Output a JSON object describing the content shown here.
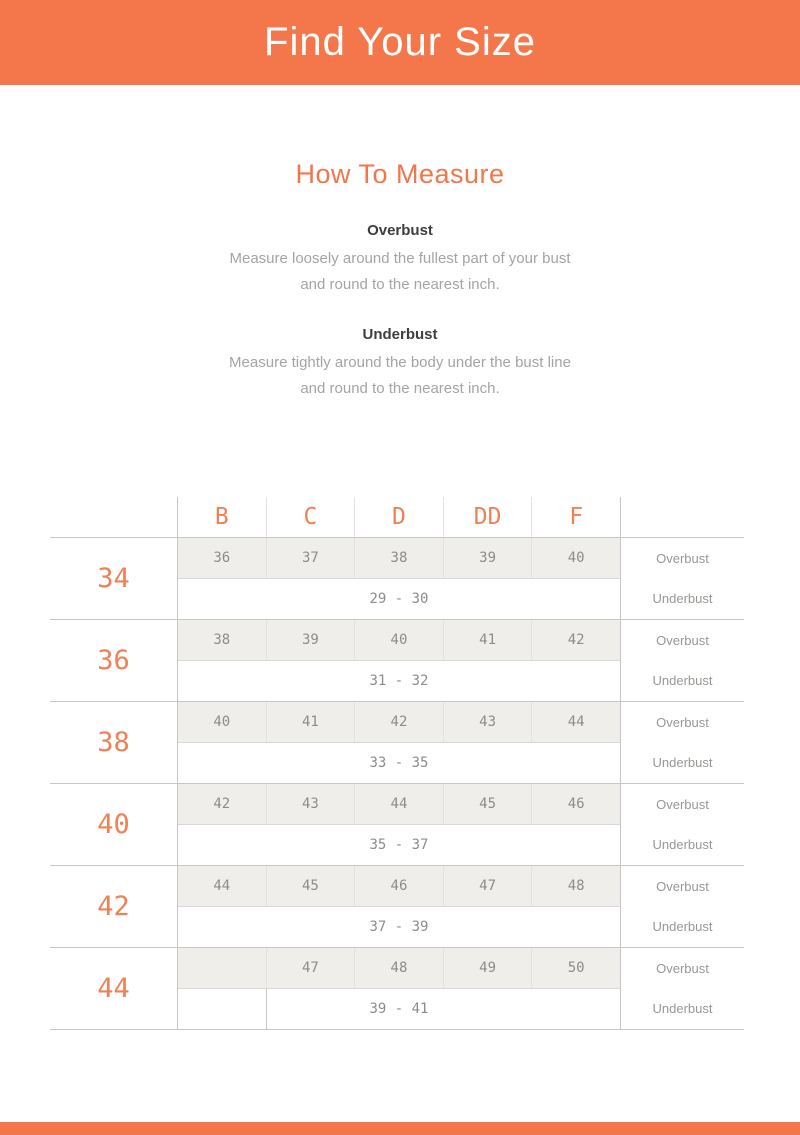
{
  "header": {
    "title": "Find Your Size"
  },
  "how_to_measure": {
    "title": "How To Measure",
    "sections": [
      {
        "heading": "Overbust",
        "line1": "Measure loosely around the fullest part of your bust",
        "line2": "and round to the nearest inch."
      },
      {
        "heading": "Underbust",
        "line1": "Measure tightly around the body under the bust line",
        "line2": "and round to the nearest inch."
      }
    ]
  },
  "size_table": {
    "cup_headers": [
      "B",
      "C",
      "D",
      "DD",
      "F"
    ],
    "row_labels": {
      "overbust": "Overbust",
      "underbust": "Underbust"
    },
    "rows": [
      {
        "band": "34",
        "overbust": [
          "36",
          "37",
          "38",
          "39",
          "40"
        ],
        "underbust": "29 - 30"
      },
      {
        "band": "36",
        "overbust": [
          "38",
          "39",
          "40",
          "41",
          "42"
        ],
        "underbust": "31 - 32"
      },
      {
        "band": "38",
        "overbust": [
          "40",
          "41",
          "42",
          "43",
          "44"
        ],
        "underbust": "33 - 35"
      },
      {
        "band": "40",
        "overbust": [
          "42",
          "43",
          "44",
          "45",
          "46"
        ],
        "underbust": "35 - 37"
      },
      {
        "band": "42",
        "overbust": [
          "44",
          "45",
          "46",
          "47",
          "48"
        ],
        "underbust": "37 - 39"
      },
      {
        "band": "44",
        "overbust": [
          "",
          "47",
          "48",
          "49",
          "50"
        ],
        "underbust": "39 - 41"
      }
    ]
  },
  "colors": {
    "banner_orange": "#F3774A",
    "accent_orange": "#F2764B",
    "table_orange": "#F08055",
    "cell_gray_bg": "#EFEEEB",
    "cell_text_gray": "#8E8C89",
    "line_gray": "#C8C6C3"
  }
}
